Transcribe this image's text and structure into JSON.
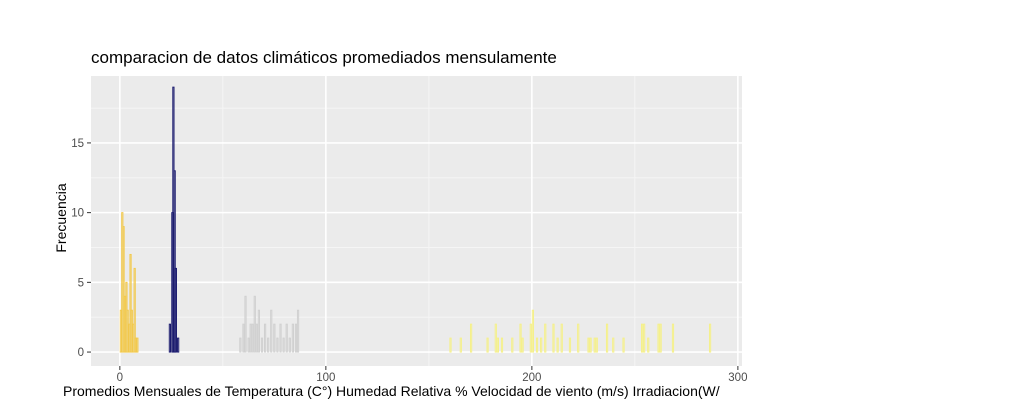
{
  "chart_data": {
    "type": "bar",
    "title": "comparacion de datos climáticos promediados mensulamente",
    "xlabel": "Promedios Mensuales de Temperatura (C°) Humedad Relativa % Velocidad de viento (m/s) Irradiacion(W/",
    "ylabel": "Frecuencia",
    "xlim": [
      -14,
      302
    ],
    "ylim": [
      -1,
      19.8
    ],
    "xticks": [
      "0",
      "100",
      "200",
      "300"
    ],
    "yticks": [
      "0",
      "5",
      "10",
      "15"
    ],
    "grid": true,
    "legend": "none",
    "series": [
      {
        "color": "#F2C94C",
        "bars": [
          {
            "x": 0.5,
            "y": 3
          },
          {
            "x": 1.2,
            "y": 10
          },
          {
            "x": 1.8,
            "y": 9
          },
          {
            "x": 2.5,
            "y": 4
          },
          {
            "x": 3.2,
            "y": 5
          },
          {
            "x": 3.8,
            "y": 3
          },
          {
            "x": 4.5,
            "y": 2
          },
          {
            "x": 5.2,
            "y": 7
          },
          {
            "x": 5.8,
            "y": 3
          },
          {
            "x": 6.5,
            "y": 2
          },
          {
            "x": 7.2,
            "y": 6
          },
          {
            "x": 7.8,
            "y": 1
          },
          {
            "x": 8.5,
            "y": 1
          }
        ]
      },
      {
        "color": "#1A1A6E",
        "bars": [
          {
            "x": 24.3,
            "y": 2
          },
          {
            "x": 25.5,
            "y": 10
          },
          {
            "x": 26.0,
            "y": 19
          },
          {
            "x": 26.6,
            "y": 13
          },
          {
            "x": 27.2,
            "y": 6
          },
          {
            "x": 28.3,
            "y": 1
          }
        ]
      },
      {
        "color": "#D0D0D0",
        "bars": [
          {
            "x": 58.5,
            "y": 1
          },
          {
            "x": 60.0,
            "y": 2
          },
          {
            "x": 61.0,
            "y": 4
          },
          {
            "x": 62.5,
            "y": 1
          },
          {
            "x": 63.5,
            "y": 2
          },
          {
            "x": 64.5,
            "y": 2
          },
          {
            "x": 65.5,
            "y": 4
          },
          {
            "x": 66.5,
            "y": 2
          },
          {
            "x": 67.5,
            "y": 3
          },
          {
            "x": 69.0,
            "y": 1
          },
          {
            "x": 70.5,
            "y": 2
          },
          {
            "x": 72.0,
            "y": 1
          },
          {
            "x": 73.5,
            "y": 3
          },
          {
            "x": 75.0,
            "y": 2
          },
          {
            "x": 76.5,
            "y": 1
          },
          {
            "x": 78.0,
            "y": 2
          },
          {
            "x": 79.5,
            "y": 1
          },
          {
            "x": 81.0,
            "y": 2
          },
          {
            "x": 82.5,
            "y": 1
          },
          {
            "x": 84.0,
            "y": 2
          },
          {
            "x": 85.5,
            "y": 2
          },
          {
            "x": 86.5,
            "y": 3
          }
        ]
      },
      {
        "color": "#F5F08A",
        "bars": [
          {
            "x": 160.5,
            "y": 1
          },
          {
            "x": 165.5,
            "y": 1
          },
          {
            "x": 170.5,
            "y": 2
          },
          {
            "x": 178.5,
            "y": 1
          },
          {
            "x": 182.5,
            "y": 2
          },
          {
            "x": 183.5,
            "y": 1
          },
          {
            "x": 185.5,
            "y": 1
          },
          {
            "x": 190.5,
            "y": 1
          },
          {
            "x": 194.5,
            "y": 2
          },
          {
            "x": 195.5,
            "y": 1
          },
          {
            "x": 199.5,
            "y": 2
          },
          {
            "x": 200.5,
            "y": 3
          },
          {
            "x": 202.5,
            "y": 1
          },
          {
            "x": 204.5,
            "y": 1
          },
          {
            "x": 206.5,
            "y": 2
          },
          {
            "x": 210.5,
            "y": 2
          },
          {
            "x": 212.5,
            "y": 1
          },
          {
            "x": 214.5,
            "y": 2
          },
          {
            "x": 218.5,
            "y": 1
          },
          {
            "x": 222.5,
            "y": 2
          },
          {
            "x": 227.5,
            "y": 1
          },
          {
            "x": 228.5,
            "y": 1
          },
          {
            "x": 230.5,
            "y": 1
          },
          {
            "x": 231.5,
            "y": 1
          },
          {
            "x": 236.5,
            "y": 2
          },
          {
            "x": 239.5,
            "y": 1
          },
          {
            "x": 244.5,
            "y": 1
          },
          {
            "x": 253.5,
            "y": 2
          },
          {
            "x": 254.5,
            "y": 2
          },
          {
            "x": 256.5,
            "y": 1
          },
          {
            "x": 261.5,
            "y": 2
          },
          {
            "x": 262.5,
            "y": 2
          },
          {
            "x": 268.5,
            "y": 2
          },
          {
            "x": 286.5,
            "y": 2
          }
        ]
      }
    ]
  }
}
